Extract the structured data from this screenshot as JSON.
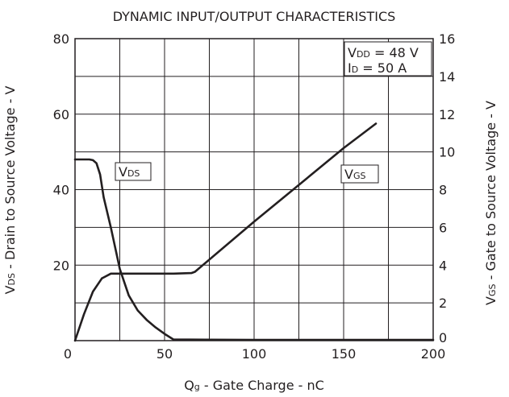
{
  "chart_data": {
    "type": "line",
    "title": "DYNAMIC INPUT/OUTPUT CHARACTERISTICS",
    "xlabel": {
      "main": "Q",
      "sub": "g",
      "rest": " - Gate Charge - nC"
    },
    "ylabel_left": {
      "main": "V",
      "sub": "DS",
      "rest": " - Drain to Source Voltage - V"
    },
    "ylabel_right": {
      "main": "V",
      "sub": "GS",
      "rest": " - Gate to Source Voltage - V"
    },
    "xlim": [
      0,
      200
    ],
    "ylim_left": [
      0,
      80
    ],
    "ylim_right": [
      0,
      16
    ],
    "grid": true,
    "x_ticks": [
      "0",
      "50",
      "100",
      "150",
      "200"
    ],
    "y_left_ticks": [
      "",
      "20",
      "40",
      "60",
      "80"
    ],
    "y_right_ticks": [
      "0",
      "2",
      "4",
      "6",
      "8",
      "10",
      "12",
      "14",
      "16"
    ],
    "conditions": [
      {
        "main": "V",
        "sub": "DD",
        "rest": " = 48 V"
      },
      {
        "main": "I",
        "sub": "D",
        "rest": " = 50 A"
      }
    ],
    "series": [
      {
        "name": {
          "main": "V",
          "sub": "DS"
        },
        "axis": "left",
        "x": [
          0,
          8,
          10,
          12,
          14,
          16,
          20,
          25,
          30,
          35,
          40,
          45,
          50,
          55,
          100,
          150,
          200
        ],
        "y": [
          48,
          48,
          47.8,
          47,
          44,
          38,
          30,
          19,
          12,
          8,
          5.5,
          3.5,
          1.8,
          0.3,
          0.2,
          0.2,
          0.2
        ]
      },
      {
        "name": {
          "main": "V",
          "sub": "GS"
        },
        "axis": "right",
        "x": [
          0,
          5,
          10,
          15,
          20,
          25,
          40,
          55,
          65,
          67,
          100,
          150,
          168
        ],
        "y": [
          0,
          1.4,
          2.6,
          3.3,
          3.55,
          3.55,
          3.55,
          3.55,
          3.58,
          3.65,
          6.3,
          10.2,
          11.5
        ]
      }
    ]
  }
}
